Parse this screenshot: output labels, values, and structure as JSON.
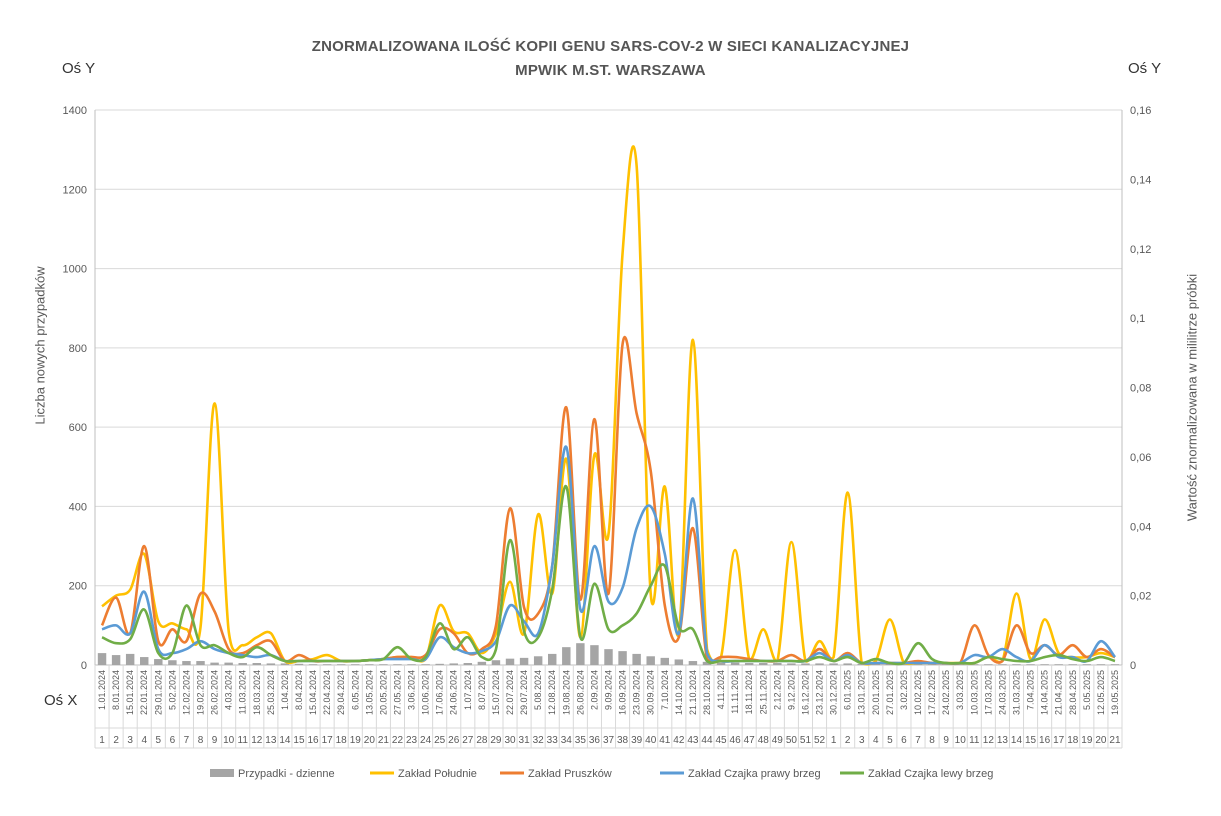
{
  "chart_data": {
    "type": "line",
    "title": "ZNORMALIZOWANA ILOŚĆ KOPII GENU SARS-COV-2 W SIECI KANALIZACYJNEJ",
    "subtitle": "MPWIK M.ST. WARSZAWA",
    "left_axis_name": "Oś Y",
    "right_axis_name": "Oś Y",
    "x_axis_name": "Oś X",
    "ylabel_left": "Liczba nowych przypadków",
    "ylabel_right": "Wartość znormalizowana w mililitrze próbki",
    "ylim_left": [
      0,
      1400
    ],
    "ylim_right": [
      0,
      0.16
    ],
    "yticks_left": [
      "0",
      "200",
      "400",
      "600",
      "800",
      "1000",
      "1200",
      "1400"
    ],
    "yticks_right": [
      "0",
      "0,02",
      "0,04",
      "0,06",
      "0,08",
      "0,1",
      "0,12",
      "0,14",
      "0,16"
    ],
    "grid": true,
    "legend_position": "bottom",
    "date_labels": [
      "1.01.2024",
      "8.01.2024",
      "15.01.2024",
      "22.01.2024",
      "29.01.2024",
      "5.02.2024",
      "12.02.2024",
      "19.02.2024",
      "26.02.2024",
      "4.03.2024",
      "11.03.2024",
      "18.03.2024",
      "25.03.2024",
      "1.04.2024",
      "8.04.2024",
      "15.04.2024",
      "22.04.2024",
      "29.04.2024",
      "6.05.2024",
      "13.05.2024",
      "20.05.2024",
      "27.05.2024",
      "3.06.2024",
      "10.06.2024",
      "17.06.2024",
      "24.06.2024",
      "1.07.2024",
      "8.07.2024",
      "15.07.2024",
      "22.07.2024",
      "29.07.2024",
      "5.08.2024",
      "12.08.2024",
      "19.08.2024",
      "26.08.2024",
      "2.09.2024",
      "9.09.2024",
      "16.09.2024",
      "23.09.2024",
      "30.09.2024",
      "7.10.2024",
      "14.10.2024",
      "21.10.2024",
      "28.10.2024",
      "4.11.2024",
      "11.11.2024",
      "18.11.2024",
      "25.11.2024",
      "2.12.2024",
      "9.12.2024",
      "16.12.2024",
      "23.12.2024",
      "30.12.2024",
      "6.01.2025",
      "13.01.2025",
      "20.01.2025",
      "27.01.2025",
      "3.02.2025",
      "10.02.2025",
      "17.02.2025",
      "24.02.2025",
      "3.03.2025",
      "10.03.2025",
      "17.03.2025",
      "24.03.2025",
      "31.03.2025",
      "7.04.2025",
      "14.04.2025",
      "21.04.2025",
      "28.04.2025",
      "5.05.2025",
      "12.05.2025",
      "19.05.2025"
    ],
    "week_labels": [
      "1",
      "2",
      "3",
      "4",
      "5",
      "6",
      "7",
      "8",
      "9",
      "10",
      "11",
      "12",
      "13",
      "14",
      "15",
      "16",
      "17",
      "18",
      "19",
      "20",
      "21",
      "22",
      "23",
      "24",
      "25",
      "26",
      "27",
      "28",
      "29",
      "30",
      "31",
      "32",
      "33",
      "34",
      "35",
      "36",
      "37",
      "38",
      "39",
      "40",
      "41",
      "42",
      "43",
      "44",
      "45",
      "46",
      "47",
      "48",
      "49",
      "50",
      "51",
      "52",
      "1",
      "2",
      "3",
      "4",
      "5",
      "6",
      "7",
      "8",
      "9",
      "10",
      "11",
      "12",
      "13",
      "14",
      "15",
      "16",
      "17",
      "18",
      "19",
      "20",
      "21"
    ],
    "series": [
      {
        "name": "Przypadki - dzienne",
        "kind": "bar",
        "axis": "left",
        "color": "#a5a5a5",
        "values": [
          30,
          25,
          28,
          20,
          15,
          12,
          10,
          10,
          6,
          6,
          5,
          5,
          4,
          4,
          3,
          2,
          2,
          2,
          2,
          2,
          2,
          2,
          2,
          2,
          3,
          4,
          5,
          8,
          12,
          16,
          18,
          22,
          28,
          45,
          55,
          50,
          40,
          35,
          28,
          22,
          18,
          14,
          10,
          8,
          6,
          6,
          5,
          5,
          5,
          4,
          4,
          4,
          4,
          4,
          3,
          3,
          3,
          3,
          3,
          2,
          2,
          2,
          2,
          2,
          2,
          2,
          2,
          2,
          2,
          2,
          2,
          2,
          2
        ]
      },
      {
        "name": "Zakład Południe",
        "kind": "line",
        "axis": "left",
        "color": "#ffc000",
        "values": [
          148,
          175,
          190,
          280,
          110,
          105,
          90,
          95,
          660,
          85,
          50,
          70,
          80,
          10,
          10,
          15,
          25,
          10,
          10,
          12,
          15,
          20,
          20,
          15,
          150,
          85,
          80,
          30,
          80,
          210,
          80,
          380,
          180,
          520,
          70,
          530,
          330,
          1040,
          1260,
          180,
          450,
          80,
          820,
          40,
          20,
          290,
          15,
          90,
          10,
          310,
          10,
          60,
          20,
          435,
          5,
          10,
          115,
          5,
          5,
          5,
          5,
          5,
          5,
          20,
          10,
          180,
          15,
          115,
          30,
          20,
          20,
          30,
          20
        ]
      },
      {
        "name": "Zakład Pruszków",
        "kind": "line",
        "axis": "left",
        "color": "#ed7d31",
        "values": [
          100,
          170,
          80,
          300,
          60,
          90,
          60,
          180,
          135,
          40,
          30,
          50,
          60,
          10,
          25,
          10,
          10,
          10,
          10,
          12,
          15,
          20,
          20,
          25,
          90,
          80,
          30,
          40,
          100,
          395,
          145,
          130,
          250,
          650,
          165,
          620,
          180,
          810,
          635,
          490,
          150,
          70,
          345,
          15,
          20,
          20,
          15,
          10,
          10,
          25,
          10,
          40,
          10,
          30,
          5,
          5,
          5,
          5,
          10,
          5,
          5,
          5,
          100,
          25,
          10,
          100,
          30,
          50,
          25,
          50,
          20,
          40,
          20
        ]
      },
      {
        "name": "Zakład Czajka prawy brzeg",
        "kind": "line",
        "axis": "left",
        "color": "#5b9bd5",
        "values": [
          90,
          100,
          80,
          185,
          40,
          30,
          40,
          60,
          40,
          30,
          25,
          20,
          25,
          10,
          10,
          10,
          10,
          10,
          10,
          12,
          15,
          15,
          15,
          15,
          70,
          45,
          30,
          35,
          60,
          150,
          110,
          80,
          250,
          550,
          140,
          300,
          160,
          195,
          345,
          400,
          280,
          80,
          420,
          30,
          10,
          10,
          10,
          10,
          10,
          10,
          10,
          30,
          10,
          25,
          5,
          5,
          5,
          5,
          5,
          5,
          5,
          5,
          25,
          20,
          40,
          20,
          10,
          50,
          20,
          20,
          10,
          60,
          20
        ]
      },
      {
        "name": "Zakład Czajka lewy brzeg",
        "kind": "line",
        "axis": "left",
        "color": "#70ad47",
        "values": [
          70,
          55,
          65,
          140,
          30,
          30,
          150,
          50,
          50,
          30,
          20,
          45,
          25,
          10,
          10,
          10,
          10,
          10,
          10,
          12,
          15,
          45,
          15,
          20,
          105,
          40,
          70,
          20,
          40,
          315,
          85,
          70,
          190,
          450,
          70,
          205,
          90,
          100,
          130,
          200,
          250,
          95,
          90,
          10,
          10,
          10,
          10,
          10,
          10,
          10,
          10,
          20,
          10,
          20,
          5,
          15,
          5,
          5,
          55,
          15,
          5,
          5,
          5,
          20,
          15,
          10,
          10,
          20,
          25,
          15,
          10,
          20,
          10
        ]
      }
    ]
  },
  "legend": {
    "entries": [
      "Przypadki - dzienne",
      "Zakład Południe",
      "Zakład Pruszków",
      "Zakład Czajka prawy brzeg",
      "Zakład Czajka lewy brzeg"
    ]
  }
}
